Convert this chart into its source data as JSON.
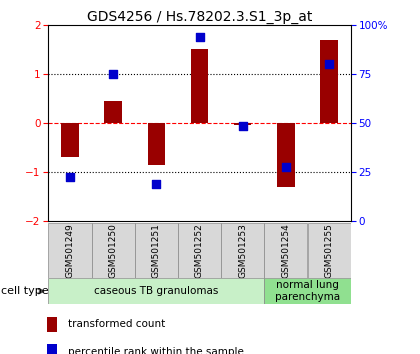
{
  "title": "GDS4256 / Hs.78202.3.S1_3p_at",
  "samples": [
    "GSM501249",
    "GSM501250",
    "GSM501251",
    "GSM501252",
    "GSM501253",
    "GSM501254",
    "GSM501255"
  ],
  "red_bars": [
    -0.7,
    0.45,
    -0.85,
    1.5,
    -0.05,
    -1.3,
    1.7
  ],
  "blue_dots": [
    -1.1,
    1.0,
    -1.25,
    1.75,
    -0.07,
    -0.9,
    1.2
  ],
  "ylim": [
    -2,
    2
  ],
  "y2lim": [
    0,
    100
  ],
  "yticks_left": [
    -2,
    -1,
    0,
    1,
    2
  ],
  "yticks_right": [
    0,
    25,
    50,
    75,
    100
  ],
  "ytick_labels_right": [
    "0",
    "25",
    "50",
    "75",
    "100%"
  ],
  "hlines": [
    -1,
    0,
    1
  ],
  "hline_styles": [
    "dotted",
    "dashed",
    "dotted"
  ],
  "hline_colors": [
    "black",
    "red",
    "black"
  ],
  "cell_type_groups": [
    {
      "label": "caseous TB granulomas",
      "start": 0,
      "end": 5,
      "color": "#c8f0c8"
    },
    {
      "label": "normal lung\nparenchyma",
      "start": 5,
      "end": 7,
      "color": "#90e090"
    }
  ],
  "bar_color": "#990000",
  "dot_color": "#0000cc",
  "bar_width": 0.4,
  "dot_size": 40,
  "background_color": "#ffffff",
  "plot_bg_color": "#ffffff",
  "cell_type_label": "cell type",
  "legend_red_label": "transformed count",
  "legend_blue_label": "percentile rank within the sample",
  "title_fontsize": 10,
  "tick_fontsize": 7.5,
  "sample_fontsize": 6.5,
  "legend_fontsize": 7.5,
  "ct_fontsize": 7.5
}
